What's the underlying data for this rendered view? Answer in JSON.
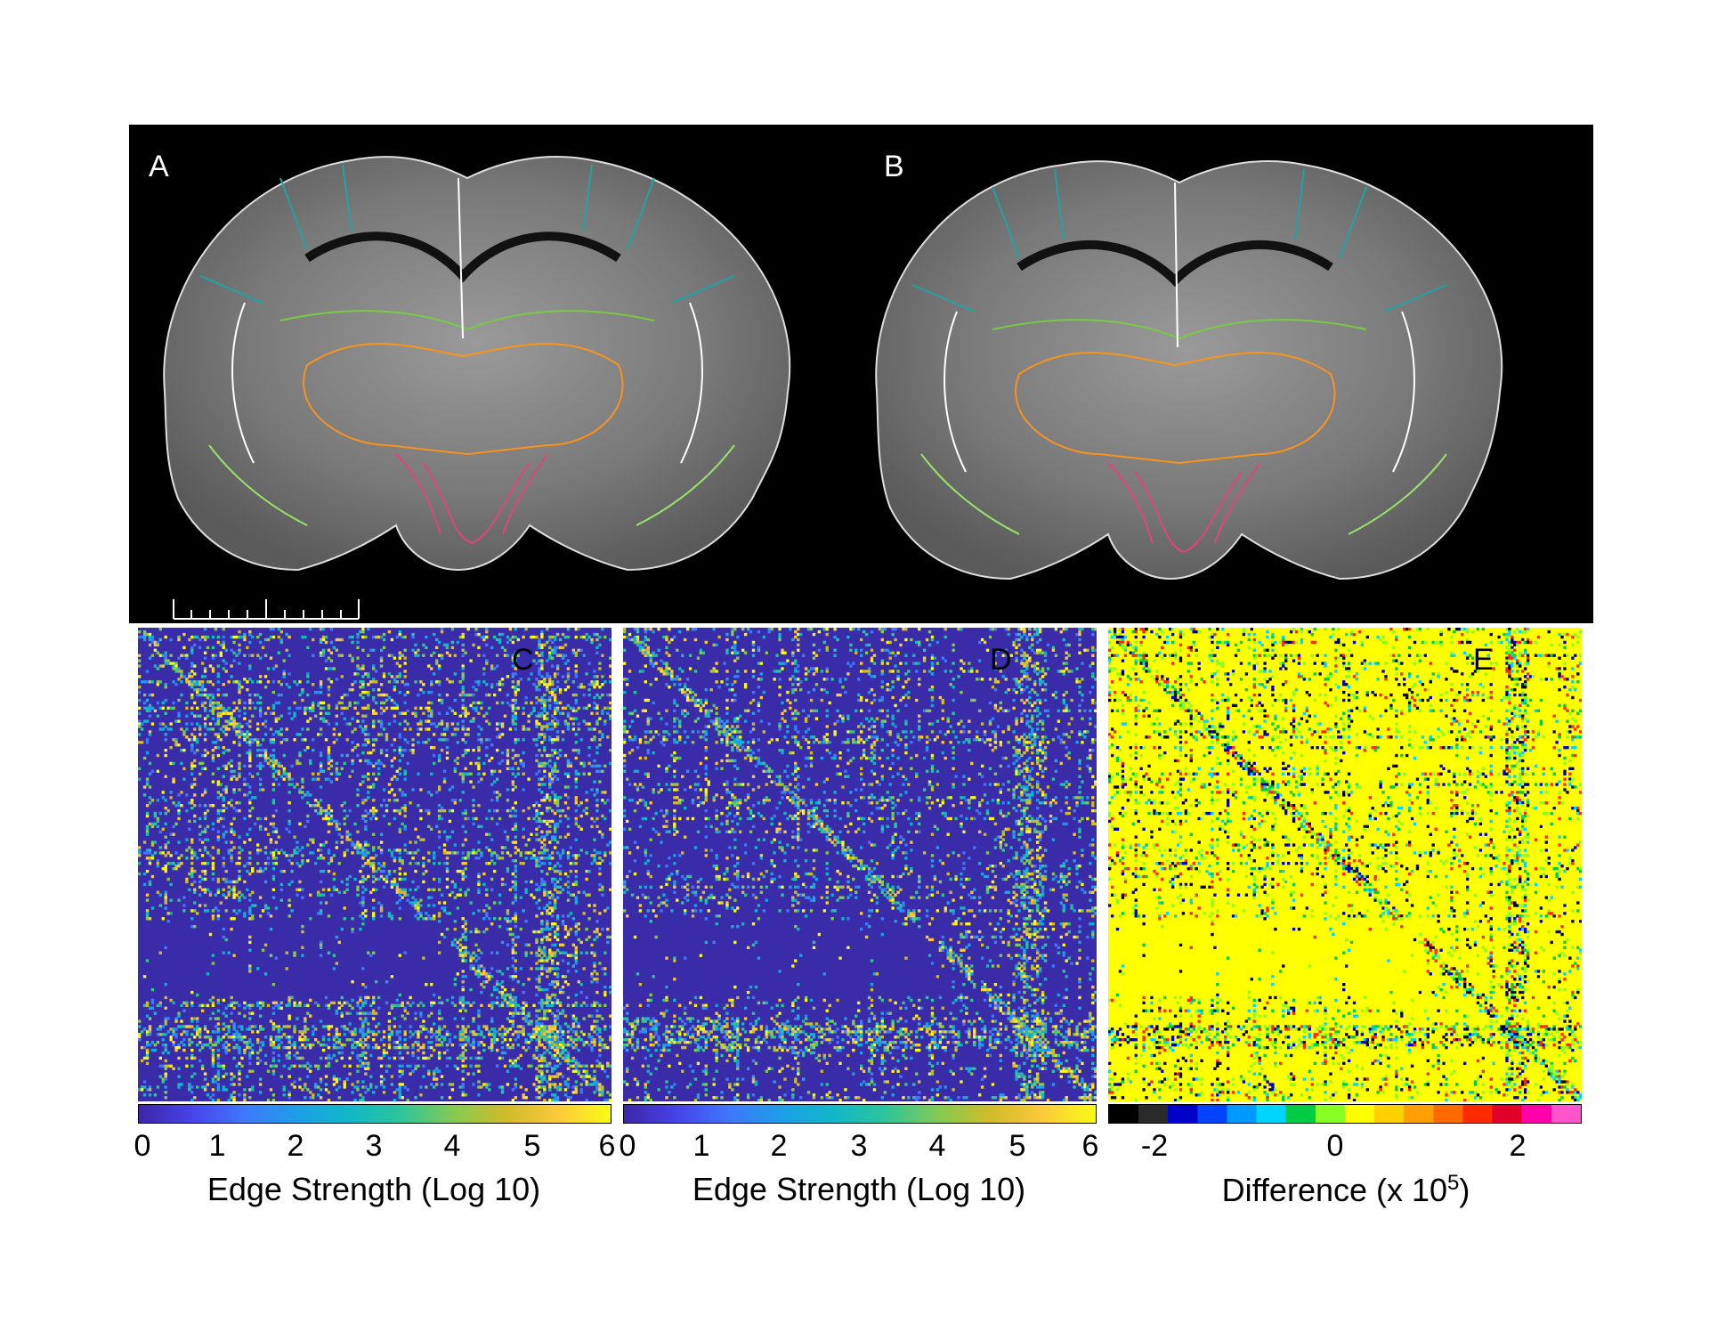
{
  "panels": {
    "A": {
      "label": "A"
    },
    "B": {
      "label": "B"
    },
    "C": {
      "label": "C",
      "colorbar": {
        "ticks": [
          "0",
          "1",
          "2",
          "3",
          "4",
          "5",
          "6"
        ],
        "title": "Edge Strength (Log 10)"
      }
    },
    "D": {
      "label": "D",
      "colorbar": {
        "ticks": [
          "0",
          "1",
          "2",
          "3",
          "4",
          "5",
          "6"
        ],
        "title": "Edge Strength (Log 10)"
      }
    },
    "E": {
      "label": "E",
      "colorbar": {
        "ticks": [
          "-2",
          "0",
          "2"
        ],
        "title_main": "Difference (x 10",
        "title_sup": "5",
        "title_end": ")"
      }
    }
  },
  "colors": {
    "matrix_background": "#3a2ca8",
    "difference_background": "#ffff00",
    "parula": [
      "#3e26a8",
      "#4743e8",
      "#3f77fd",
      "#1e9ee8",
      "#10b7c8",
      "#2ec59a",
      "#84ca52",
      "#d0bb2a",
      "#fcc93a",
      "#f9fb15"
    ],
    "difference_scale": [
      "#000000",
      "#2a2a2a",
      "#0000c8",
      "#0044ff",
      "#0099ff",
      "#00d5ff",
      "#00cc44",
      "#88ff22",
      "#ffff00",
      "#ffd000",
      "#ffa000",
      "#ff6a00",
      "#ff2a00",
      "#e0002a",
      "#ff00aa",
      "#ff55cc"
    ]
  }
}
